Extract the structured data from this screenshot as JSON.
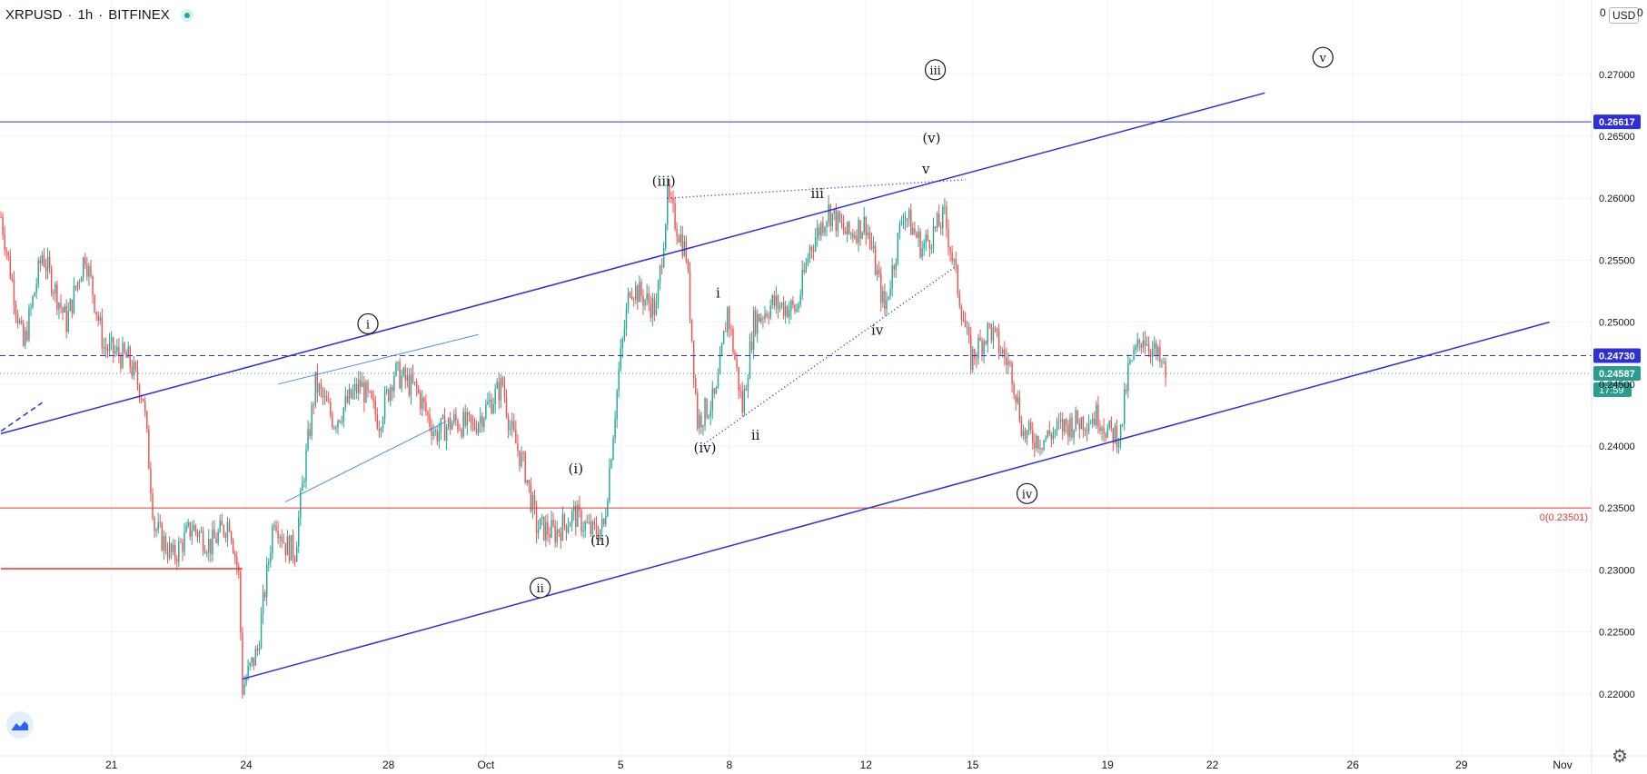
{
  "header": {
    "symbol": "XRPUSD",
    "interval": "1h",
    "exchange": "BITFINEX",
    "separator": "·"
  },
  "currency_button": "USD",
  "top_zero_left": "0",
  "top_zero_right": "0",
  "colors": {
    "up": "#26a69a",
    "down": "#ef5350",
    "trend": "#2f2fd6",
    "trend_light": "#4a90e2",
    "support": "#e53935",
    "price_badge": "#2a9d8f"
  },
  "icons": {
    "logo": "tradingview-logo-icon",
    "settings": "gear-icon"
  },
  "chart_data": {
    "type": "candlestick",
    "title": "",
    "yaxis": {
      "min": 0.215,
      "max": 0.276,
      "ticks": [
        "0.27000",
        "0.26500",
        "0.26000",
        "0.25500",
        "0.25000",
        "0.24500",
        "0.24000",
        "0.23500",
        "0.23000",
        "0.22500",
        "0.22000"
      ],
      "tick_values": [
        0.27,
        0.265,
        0.26,
        0.255,
        0.25,
        0.245,
        0.24,
        0.235,
        0.23,
        0.225,
        0.22
      ]
    },
    "xaxis": {
      "labels": [
        "21",
        "24",
        "28",
        "Oct",
        "5",
        "8",
        "12",
        "15",
        "19",
        "22",
        "26",
        "29",
        "Nov"
      ],
      "label_index": [
        59,
        131,
        207,
        259,
        331,
        389,
        462,
        519,
        591,
        647,
        722,
        780,
        834
      ]
    },
    "price_path": [
      [
        0,
        0.2585
      ],
      [
        12,
        0.248
      ],
      [
        22,
        0.2555
      ],
      [
        35,
        0.25
      ],
      [
        45,
        0.2555
      ],
      [
        55,
        0.248
      ],
      [
        68,
        0.247
      ],
      [
        76,
        0.244
      ],
      [
        82,
        0.2335
      ],
      [
        92,
        0.231
      ],
      [
        102,
        0.2335
      ],
      [
        112,
        0.232
      ],
      [
        122,
        0.234
      ],
      [
        127,
        0.2295
      ],
      [
        129,
        0.2205
      ],
      [
        137,
        0.2235
      ],
      [
        146,
        0.2345
      ],
      [
        152,
        0.232
      ],
      [
        157,
        0.2315
      ],
      [
        162,
        0.238
      ],
      [
        168,
        0.245
      ],
      [
        178,
        0.242
      ],
      [
        192,
        0.245
      ],
      [
        202,
        0.242
      ],
      [
        210,
        0.246
      ],
      [
        222,
        0.2445
      ],
      [
        232,
        0.241
      ],
      [
        242,
        0.242
      ],
      [
        252,
        0.2415
      ],
      [
        268,
        0.245
      ],
      [
        272,
        0.2415
      ],
      [
        280,
        0.238
      ],
      [
        286,
        0.2335
      ],
      [
        296,
        0.233
      ],
      [
        306,
        0.2345
      ],
      [
        316,
        0.233
      ],
      [
        322,
        0.2335
      ],
      [
        330,
        0.246
      ],
      [
        336,
        0.253
      ],
      [
        350,
        0.251
      ],
      [
        356,
        0.26
      ],
      [
        366,
        0.2555
      ],
      [
        372,
        0.242
      ],
      [
        382,
        0.244
      ],
      [
        388,
        0.251
      ],
      [
        396,
        0.243
      ],
      [
        402,
        0.25
      ],
      [
        412,
        0.2515
      ],
      [
        425,
        0.251
      ],
      [
        432,
        0.256
      ],
      [
        442,
        0.259
      ],
      [
        452,
        0.257
      ],
      [
        462,
        0.258
      ],
      [
        472,
        0.251
      ],
      [
        482,
        0.259
      ],
      [
        492,
        0.256
      ],
      [
        504,
        0.2585
      ],
      [
        512,
        0.252
      ],
      [
        518,
        0.247
      ],
      [
        528,
        0.2495
      ],
      [
        540,
        0.246
      ],
      [
        546,
        0.241
      ],
      [
        556,
        0.2405
      ],
      [
        566,
        0.2415
      ],
      [
        576,
        0.242
      ],
      [
        586,
        0.2425
      ],
      [
        592,
        0.241
      ],
      [
        598,
        0.241
      ],
      [
        602,
        0.246
      ],
      [
        610,
        0.249
      ],
      [
        618,
        0.247
      ],
      [
        622,
        0.2458
      ]
    ],
    "horizontal_levels": [
      {
        "value": 0.26617,
        "style": "solid",
        "color": "#2f2fd6",
        "badge": "0.26617"
      },
      {
        "value": 0.2473,
        "style": "dashed",
        "color": "#2f2fd6",
        "badge": "0.24730"
      },
      {
        "value": 0.24587,
        "style": "dotted",
        "color": "#2a9d8f",
        "badge": "0.24587"
      },
      {
        "value": 0.23501,
        "style": "solid",
        "color": "#e53935",
        "label": "0(0.23501)"
      }
    ],
    "countdown": "17:59",
    "wave_labels": [
      {
        "text": "i",
        "i": 196,
        "v": 0.2495,
        "circled": true
      },
      {
        "text": "ii",
        "i": 288,
        "v": 0.2282,
        "circled": true
      },
      {
        "text": "iii",
        "i": 499,
        "v": 0.27,
        "circled": true
      },
      {
        "text": "iv",
        "i": 548,
        "v": 0.2358,
        "circled": true
      },
      {
        "text": "v",
        "i": 706,
        "v": 0.271,
        "circled": true
      },
      {
        "text": "(i)",
        "i": 307,
        "v": 0.2378,
        "circled": false
      },
      {
        "text": "(ii)",
        "i": 320,
        "v": 0.232,
        "circled": false
      },
      {
        "text": "(iii)",
        "i": 354,
        "v": 0.261,
        "circled": false
      },
      {
        "text": "(iv)",
        "i": 376,
        "v": 0.2395,
        "circled": false
      },
      {
        "text": "(v)",
        "i": 497,
        "v": 0.2645,
        "circled": false
      },
      {
        "text": "i",
        "i": 383,
        "v": 0.252,
        "circled": false
      },
      {
        "text": "ii",
        "i": 403,
        "v": 0.2405,
        "circled": false
      },
      {
        "text": "iii",
        "i": 436,
        "v": 0.26,
        "circled": false
      },
      {
        "text": "iv",
        "i": 468,
        "v": 0.249,
        "circled": false
      },
      {
        "text": "v",
        "i": 494,
        "v": 0.262,
        "circled": false
      }
    ],
    "trend_lines": [
      {
        "from": [
          0,
          0.241
        ],
        "to": [
          675,
          0.2685
        ],
        "color": "#2f2fd6",
        "style": "solid"
      },
      {
        "from": [
          129,
          0.2212
        ],
        "to": [
          827,
          0.25
        ],
        "color": "#2f2fd6",
        "style": "solid"
      },
      {
        "from": [
          148,
          0.245
        ],
        "to": [
          255,
          0.249
        ],
        "color": "#4a90e2",
        "style": "solid",
        "thin": true
      },
      {
        "from": [
          152,
          0.2355
        ],
        "to": [
          238,
          0.242
        ],
        "color": "#4a90e2",
        "style": "solid",
        "thin": true
      },
      {
        "from": [
          356,
          0.26
        ],
        "to": [
          515,
          0.2615
        ],
        "color": "#2f2fd6",
        "style": "dotted"
      },
      {
        "from": [
          374,
          0.24
        ],
        "to": [
          510,
          0.2545
        ],
        "color": "#2f2fd6",
        "style": "dotted"
      },
      {
        "from": [
          0,
          0.2412
        ],
        "to": [
          22,
          0.2435
        ],
        "color": "#2f2fd6",
        "style": "dashed"
      },
      {
        "from": [
          0,
          0.2301
        ],
        "to": [
          129,
          0.2301
        ],
        "color": "#e53935",
        "style": "solid"
      }
    ]
  }
}
